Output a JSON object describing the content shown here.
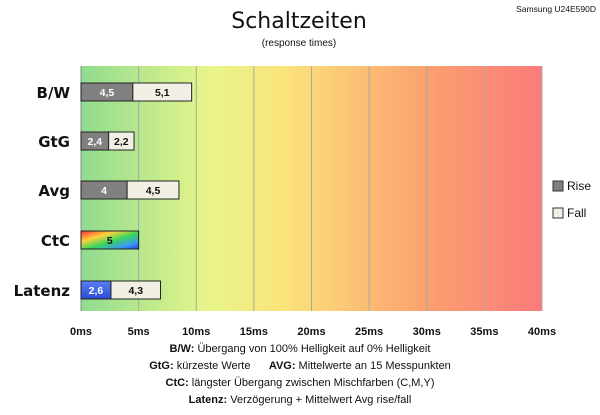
{
  "chart_data": {
    "type": "bar",
    "title": "Schaltzeiten",
    "subtitle": "(response times)",
    "model": "Samsung U24E590D",
    "xlim": [
      0,
      40
    ],
    "x_ticks": [
      "0ms",
      "5ms",
      "10ms",
      "15ms",
      "20ms",
      "25ms",
      "30ms",
      "35ms",
      "40ms"
    ],
    "grid": true,
    "background": "gradient green-yellow-red",
    "legend": {
      "placement": "right",
      "items": [
        "Rise",
        "Fall"
      ]
    },
    "categories": [
      "B/W",
      "GtG",
      "Avg",
      "CtC",
      "Latenz"
    ],
    "series": [
      {
        "name": "Rise",
        "values": [
          4.5,
          2.4,
          4,
          null,
          null
        ]
      },
      {
        "name": "Fall",
        "values": [
          5.1,
          2.2,
          4.5,
          null,
          4.3
        ]
      }
    ],
    "ctc": {
      "value": 5,
      "label": "5"
    },
    "latenz_delay": {
      "value": 2.6,
      "label": "2,6"
    },
    "bar_labels": {
      "B/W": [
        "4,5",
        "5,1"
      ],
      "GtG": [
        "2,4",
        "2,2"
      ],
      "Avg": [
        "4",
        "4,5"
      ],
      "Latenz": [
        "2,6",
        "4,3"
      ]
    }
  },
  "notes": [
    {
      "key": "B/W:",
      "text": " Übergang von 100% Helligkeit auf 0% Helligkeit"
    },
    {
      "key": "GtG:",
      "text": " kürzeste Werte",
      "key2": "AVG:",
      "text2": " Mittelwerte an 15 Messpunkten"
    },
    {
      "key": "CtC:",
      "text": " längster Übergang zwischen Mischfarben (C,M,Y)"
    },
    {
      "key": "Latenz:",
      "text": " Verzögerung + Mittelwert Avg rise/fall"
    }
  ],
  "colors": {
    "rise": "#808080",
    "fall": "#f2f0e4",
    "latenz": "#3f63e6",
    "grid": "#999999"
  }
}
